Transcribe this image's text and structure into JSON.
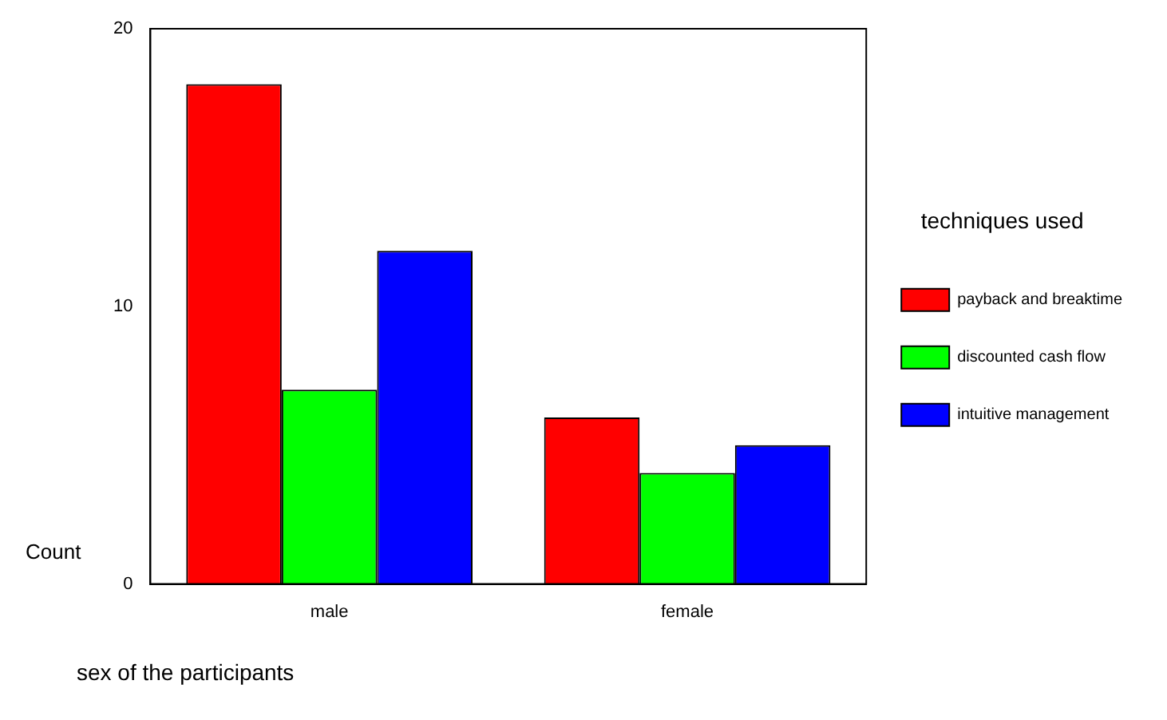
{
  "chart_data": {
    "type": "bar",
    "xlabel": "sex of the participants",
    "ylabel": "Count",
    "legend_title": "techniques used",
    "categories": [
      "male",
      "female"
    ],
    "series": [
      {
        "name": "payback and breaktime",
        "color": "#ff0000",
        "values": [
          18,
          6
        ]
      },
      {
        "name": "discounted cash flow",
        "color": "#00ff00",
        "values": [
          7,
          4
        ]
      },
      {
        "name": "intuitive management",
        "color": "#0000ff",
        "values": [
          12,
          5
        ]
      }
    ],
    "ylim": [
      0,
      20
    ],
    "yticks": [
      0,
      10,
      20
    ],
    "grid": false,
    "legend": "right"
  }
}
